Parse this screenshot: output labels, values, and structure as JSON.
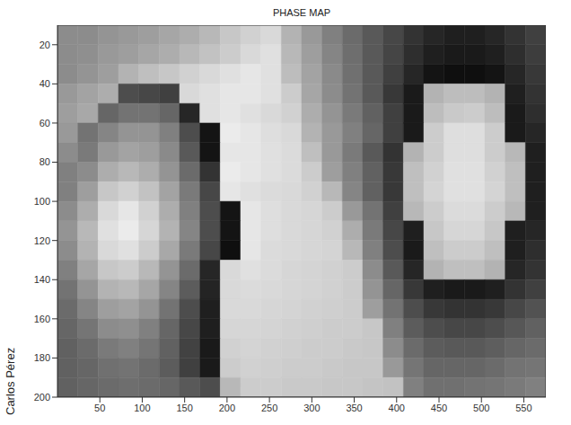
{
  "chart_data": {
    "type": "heatmap",
    "title": "PHASE MAP",
    "annotation": "Carlos Pérez",
    "xlim": [
      0,
      576
    ],
    "ylim": [
      10,
      200
    ],
    "xticks": [
      50,
      100,
      150,
      200,
      250,
      300,
      350,
      400,
      450,
      500,
      550
    ],
    "yticks": [
      20,
      40,
      60,
      80,
      100,
      120,
      140,
      160,
      180,
      200
    ],
    "clim": [
      0,
      1
    ],
    "colors": [
      "#000000",
      "#ffffff"
    ],
    "x_edges": [
      0,
      24,
      48,
      72,
      96,
      120,
      144,
      168,
      192,
      216,
      240,
      264,
      288,
      312,
      336,
      360,
      384,
      408,
      432,
      456,
      480,
      504,
      528,
      552,
      576
    ],
    "y_edges": [
      10,
      20,
      30,
      40,
      50,
      60,
      70,
      80,
      90,
      100,
      110,
      120,
      130,
      140,
      150,
      160,
      170,
      180,
      190,
      200
    ],
    "z": [
      [
        0.55,
        0.55,
        0.58,
        0.6,
        0.62,
        0.65,
        0.68,
        0.72,
        0.78,
        0.82,
        0.85,
        0.7,
        0.6,
        0.5,
        0.42,
        0.35,
        0.28,
        0.2,
        0.15,
        0.12,
        0.12,
        0.15,
        0.2,
        0.25
      ],
      [
        0.55,
        0.56,
        0.6,
        0.62,
        0.65,
        0.68,
        0.72,
        0.76,
        0.8,
        0.85,
        0.88,
        0.72,
        0.62,
        0.52,
        0.43,
        0.35,
        0.27,
        0.18,
        0.12,
        0.1,
        0.1,
        0.12,
        0.18,
        0.24
      ],
      [
        0.55,
        0.58,
        0.62,
        0.7,
        0.75,
        0.78,
        0.82,
        0.85,
        0.88,
        0.9,
        0.88,
        0.74,
        0.64,
        0.54,
        0.44,
        0.35,
        0.25,
        0.15,
        0.08,
        0.06,
        0.06,
        0.08,
        0.15,
        0.22
      ],
      [
        0.6,
        0.64,
        0.68,
        0.3,
        0.28,
        0.25,
        0.85,
        0.88,
        0.9,
        0.9,
        0.88,
        0.8,
        0.65,
        0.55,
        0.45,
        0.35,
        0.22,
        0.1,
        0.7,
        0.74,
        0.74,
        0.7,
        0.12,
        0.2
      ],
      [
        0.62,
        0.66,
        0.4,
        0.45,
        0.45,
        0.4,
        0.15,
        0.88,
        0.9,
        0.88,
        0.85,
        0.82,
        0.68,
        0.58,
        0.48,
        0.38,
        0.25,
        0.1,
        0.74,
        0.79,
        0.8,
        0.74,
        0.1,
        0.18
      ],
      [
        0.6,
        0.45,
        0.52,
        0.58,
        0.58,
        0.5,
        0.3,
        0.08,
        0.92,
        0.9,
        0.87,
        0.85,
        0.7,
        0.6,
        0.5,
        0.4,
        0.25,
        0.1,
        0.8,
        0.87,
        0.87,
        0.8,
        0.1,
        0.15
      ],
      [
        0.55,
        0.48,
        0.6,
        0.64,
        0.62,
        0.54,
        0.35,
        0.08,
        0.9,
        0.9,
        0.88,
        0.86,
        0.75,
        0.6,
        0.48,
        0.35,
        0.2,
        0.7,
        0.8,
        0.87,
        0.87,
        0.8,
        0.72,
        0.12
      ],
      [
        0.5,
        0.55,
        0.68,
        0.72,
        0.68,
        0.58,
        0.42,
        0.2,
        0.92,
        0.9,
        0.88,
        0.86,
        0.8,
        0.62,
        0.5,
        0.38,
        0.22,
        0.75,
        0.82,
        0.88,
        0.88,
        0.82,
        0.75,
        0.12
      ],
      [
        0.5,
        0.62,
        0.78,
        0.82,
        0.76,
        0.64,
        0.48,
        0.28,
        0.9,
        0.88,
        0.86,
        0.85,
        0.82,
        0.72,
        0.52,
        0.38,
        0.22,
        0.75,
        0.83,
        0.88,
        0.88,
        0.83,
        0.75,
        0.12
      ],
      [
        0.55,
        0.68,
        0.85,
        0.9,
        0.82,
        0.68,
        0.5,
        0.3,
        0.08,
        0.9,
        0.87,
        0.85,
        0.84,
        0.8,
        0.6,
        0.45,
        0.25,
        0.72,
        0.8,
        0.86,
        0.86,
        0.8,
        0.72,
        0.12
      ],
      [
        0.58,
        0.72,
        0.88,
        0.92,
        0.84,
        0.7,
        0.52,
        0.3,
        0.08,
        0.9,
        0.87,
        0.85,
        0.84,
        0.82,
        0.68,
        0.48,
        0.28,
        0.12,
        0.78,
        0.84,
        0.84,
        0.78,
        0.12,
        0.15
      ],
      [
        0.55,
        0.7,
        0.85,
        0.88,
        0.8,
        0.66,
        0.48,
        0.28,
        0.06,
        0.9,
        0.86,
        0.85,
        0.84,
        0.83,
        0.72,
        0.5,
        0.3,
        0.1,
        0.75,
        0.8,
        0.8,
        0.75,
        0.12,
        0.18
      ],
      [
        0.5,
        0.65,
        0.78,
        0.8,
        0.72,
        0.58,
        0.42,
        0.15,
        0.85,
        0.88,
        0.86,
        0.84,
        0.83,
        0.82,
        0.8,
        0.55,
        0.35,
        0.15,
        0.7,
        0.75,
        0.75,
        0.7,
        0.15,
        0.2
      ],
      [
        0.45,
        0.58,
        0.7,
        0.72,
        0.65,
        0.52,
        0.36,
        0.14,
        0.85,
        0.86,
        0.85,
        0.84,
        0.83,
        0.82,
        0.8,
        0.58,
        0.4,
        0.22,
        0.12,
        0.1,
        0.1,
        0.12,
        0.2,
        0.25
      ],
      [
        0.42,
        0.52,
        0.62,
        0.64,
        0.58,
        0.45,
        0.3,
        0.12,
        0.85,
        0.85,
        0.84,
        0.83,
        0.82,
        0.81,
        0.8,
        0.62,
        0.45,
        0.3,
        0.22,
        0.2,
        0.2,
        0.22,
        0.28,
        0.32
      ],
      [
        0.4,
        0.46,
        0.55,
        0.56,
        0.5,
        0.4,
        0.28,
        0.12,
        0.84,
        0.84,
        0.83,
        0.82,
        0.81,
        0.8,
        0.8,
        0.78,
        0.5,
        0.36,
        0.3,
        0.28,
        0.28,
        0.3,
        0.34,
        0.38
      ],
      [
        0.38,
        0.42,
        0.48,
        0.5,
        0.46,
        0.38,
        0.26,
        0.1,
        0.82,
        0.83,
        0.82,
        0.81,
        0.8,
        0.8,
        0.79,
        0.78,
        0.55,
        0.42,
        0.36,
        0.35,
        0.35,
        0.37,
        0.4,
        0.42
      ],
      [
        0.38,
        0.4,
        0.44,
        0.45,
        0.42,
        0.36,
        0.25,
        0.1,
        0.8,
        0.82,
        0.81,
        0.8,
        0.8,
        0.79,
        0.78,
        0.78,
        0.6,
        0.46,
        0.4,
        0.4,
        0.4,
        0.42,
        0.45,
        0.46
      ],
      [
        0.38,
        0.4,
        0.42,
        0.43,
        0.42,
        0.4,
        0.35,
        0.3,
        0.72,
        0.8,
        0.8,
        0.79,
        0.79,
        0.78,
        0.78,
        0.77,
        0.76,
        0.5,
        0.44,
        0.44,
        0.45,
        0.46,
        0.48,
        0.5
      ]
    ]
  }
}
